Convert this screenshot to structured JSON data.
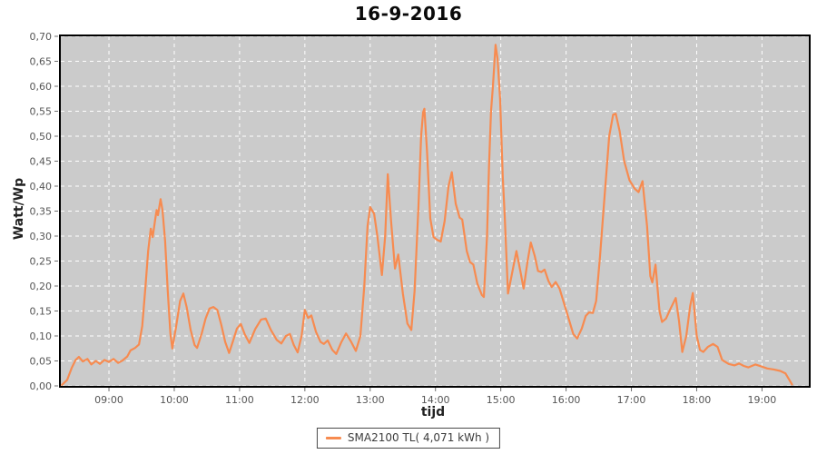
{
  "colors": {
    "line": "#f78b50",
    "plot_bg": "#cbcbcb",
    "grid": "#ffffff",
    "plot_border": "#000000",
    "tick": "#6e6e6e",
    "tick_label": "#555555",
    "title_text": "#0a0a0a",
    "legend_border": "#4a4a4a"
  },
  "chart_data": {
    "type": "line",
    "title": "16-9-2016",
    "xlabel": "tijd",
    "ylabel": "Watt/Wp",
    "grid": true,
    "legend": {
      "position": "bottom",
      "entries": [
        {
          "label": "SMA2100 TL( 4,071 kWh )",
          "color": "#f78b50"
        }
      ]
    },
    "x_ticks": [
      "09:00",
      "10:00",
      "11:00",
      "12:00",
      "13:00",
      "14:00",
      "15:00",
      "16:00",
      "17:00",
      "18:00",
      "19:00"
    ],
    "x_tick_hours": [
      9,
      10,
      11,
      12,
      13,
      14,
      15,
      16,
      17,
      18,
      19
    ],
    "y_ticks": [
      "0,00",
      "0,05",
      "0,10",
      "0,15",
      "0,20",
      "0,25",
      "0,30",
      "0,35",
      "0,40",
      "0,45",
      "0,50",
      "0,55",
      "0,60",
      "0,65",
      "0,70"
    ],
    "y_tick_values": [
      0,
      0.05,
      0.1,
      0.15,
      0.2,
      0.25,
      0.3,
      0.35,
      0.4,
      0.45,
      0.5,
      0.55,
      0.6,
      0.65,
      0.7
    ],
    "ylim": [
      0,
      0.7
    ],
    "xlim_hours": [
      8.235,
      19.745
    ],
    "series": [
      {
        "name": "SMA2100 TL( 4,071 kWh )",
        "points": [
          [
            8.28,
            0.002
          ],
          [
            8.36,
            0.012
          ],
          [
            8.43,
            0.036
          ],
          [
            8.49,
            0.052
          ],
          [
            8.54,
            0.058
          ],
          [
            8.6,
            0.049
          ],
          [
            8.67,
            0.054
          ],
          [
            8.73,
            0.043
          ],
          [
            8.8,
            0.05
          ],
          [
            8.86,
            0.044
          ],
          [
            8.93,
            0.052
          ],
          [
            9.0,
            0.048
          ],
          [
            9.07,
            0.054
          ],
          [
            9.14,
            0.046
          ],
          [
            9.21,
            0.051
          ],
          [
            9.28,
            0.059
          ],
          [
            9.33,
            0.071
          ],
          [
            9.4,
            0.076
          ],
          [
            9.46,
            0.083
          ],
          [
            9.51,
            0.12
          ],
          [
            9.56,
            0.2
          ],
          [
            9.6,
            0.27
          ],
          [
            9.64,
            0.315
          ],
          [
            9.67,
            0.298
          ],
          [
            9.71,
            0.335
          ],
          [
            9.73,
            0.352
          ],
          [
            9.75,
            0.342
          ],
          [
            9.79,
            0.374
          ],
          [
            9.82,
            0.352
          ],
          [
            9.86,
            0.29
          ],
          [
            9.9,
            0.19
          ],
          [
            9.94,
            0.105
          ],
          [
            9.97,
            0.075
          ],
          [
            10.03,
            0.12
          ],
          [
            10.09,
            0.17
          ],
          [
            10.14,
            0.185
          ],
          [
            10.19,
            0.158
          ],
          [
            10.25,
            0.112
          ],
          [
            10.31,
            0.082
          ],
          [
            10.35,
            0.076
          ],
          [
            10.42,
            0.105
          ],
          [
            10.48,
            0.135
          ],
          [
            10.54,
            0.155
          ],
          [
            10.6,
            0.158
          ],
          [
            10.66,
            0.152
          ],
          [
            10.72,
            0.122
          ],
          [
            10.78,
            0.088
          ],
          [
            10.84,
            0.066
          ],
          [
            10.9,
            0.09
          ],
          [
            10.96,
            0.115
          ],
          [
            11.02,
            0.124
          ],
          [
            11.08,
            0.103
          ],
          [
            11.15,
            0.086
          ],
          [
            11.24,
            0.114
          ],
          [
            11.33,
            0.133
          ],
          [
            11.4,
            0.135
          ],
          [
            11.48,
            0.112
          ],
          [
            11.57,
            0.092
          ],
          [
            11.64,
            0.085
          ],
          [
            11.71,
            0.1
          ],
          [
            11.77,
            0.104
          ],
          [
            11.83,
            0.082
          ],
          [
            11.89,
            0.067
          ],
          [
            11.95,
            0.1
          ],
          [
            12.0,
            0.152
          ],
          [
            12.05,
            0.136
          ],
          [
            12.1,
            0.141
          ],
          [
            12.17,
            0.108
          ],
          [
            12.24,
            0.088
          ],
          [
            12.29,
            0.084
          ],
          [
            12.35,
            0.091
          ],
          [
            12.42,
            0.072
          ],
          [
            12.48,
            0.064
          ],
          [
            12.56,
            0.088
          ],
          [
            12.63,
            0.105
          ],
          [
            12.71,
            0.088
          ],
          [
            12.78,
            0.07
          ],
          [
            12.85,
            0.1
          ],
          [
            12.91,
            0.2
          ],
          [
            12.96,
            0.32
          ],
          [
            13.0,
            0.358
          ],
          [
            13.06,
            0.345
          ],
          [
            13.11,
            0.3
          ],
          [
            13.18,
            0.222
          ],
          [
            13.23,
            0.3
          ],
          [
            13.27,
            0.424
          ],
          [
            13.32,
            0.33
          ],
          [
            13.38,
            0.235
          ],
          [
            13.43,
            0.263
          ],
          [
            13.5,
            0.185
          ],
          [
            13.57,
            0.125
          ],
          [
            13.63,
            0.112
          ],
          [
            13.68,
            0.19
          ],
          [
            13.74,
            0.36
          ],
          [
            13.78,
            0.5
          ],
          [
            13.81,
            0.548
          ],
          [
            13.83,
            0.555
          ],
          [
            13.87,
            0.47
          ],
          [
            13.92,
            0.335
          ],
          [
            13.97,
            0.298
          ],
          [
            14.03,
            0.292
          ],
          [
            14.08,
            0.289
          ],
          [
            14.14,
            0.33
          ],
          [
            14.2,
            0.4
          ],
          [
            14.25,
            0.428
          ],
          [
            14.31,
            0.365
          ],
          [
            14.37,
            0.337
          ],
          [
            14.41,
            0.333
          ],
          [
            14.48,
            0.27
          ],
          [
            14.53,
            0.248
          ],
          [
            14.58,
            0.243
          ],
          [
            14.64,
            0.205
          ],
          [
            14.71,
            0.182
          ],
          [
            14.74,
            0.178
          ],
          [
            14.79,
            0.3
          ],
          [
            14.82,
            0.44
          ],
          [
            14.85,
            0.55
          ],
          [
            14.88,
            0.6
          ],
          [
            14.92,
            0.683
          ],
          [
            14.95,
            0.655
          ],
          [
            14.99,
            0.575
          ],
          [
            15.03,
            0.42
          ],
          [
            15.06,
            0.34
          ],
          [
            15.11,
            0.185
          ],
          [
            15.15,
            0.21
          ],
          [
            15.24,
            0.27
          ],
          [
            15.3,
            0.23
          ],
          [
            15.35,
            0.195
          ],
          [
            15.41,
            0.25
          ],
          [
            15.46,
            0.287
          ],
          [
            15.52,
            0.26
          ],
          [
            15.57,
            0.23
          ],
          [
            15.62,
            0.228
          ],
          [
            15.67,
            0.233
          ],
          [
            15.73,
            0.21
          ],
          [
            15.78,
            0.198
          ],
          [
            15.84,
            0.208
          ],
          [
            15.9,
            0.195
          ],
          [
            15.97,
            0.165
          ],
          [
            16.05,
            0.13
          ],
          [
            16.11,
            0.104
          ],
          [
            16.17,
            0.095
          ],
          [
            16.24,
            0.115
          ],
          [
            16.3,
            0.14
          ],
          [
            16.35,
            0.147
          ],
          [
            16.41,
            0.146
          ],
          [
            16.46,
            0.17
          ],
          [
            16.52,
            0.26
          ],
          [
            16.59,
            0.38
          ],
          [
            16.66,
            0.5
          ],
          [
            16.72,
            0.543
          ],
          [
            16.76,
            0.545
          ],
          [
            16.82,
            0.51
          ],
          [
            16.89,
            0.45
          ],
          [
            16.97,
            0.412
          ],
          [
            17.05,
            0.395
          ],
          [
            17.11,
            0.388
          ],
          [
            17.17,
            0.41
          ],
          [
            17.24,
            0.32
          ],
          [
            17.29,
            0.22
          ],
          [
            17.32,
            0.207
          ],
          [
            17.37,
            0.243
          ],
          [
            17.43,
            0.15
          ],
          [
            17.47,
            0.128
          ],
          [
            17.53,
            0.135
          ],
          [
            17.6,
            0.155
          ],
          [
            17.68,
            0.176
          ],
          [
            17.73,
            0.13
          ],
          [
            17.78,
            0.068
          ],
          [
            17.84,
            0.1
          ],
          [
            17.9,
            0.16
          ],
          [
            17.94,
            0.186
          ],
          [
            18.0,
            0.1
          ],
          [
            18.05,
            0.072
          ],
          [
            18.1,
            0.068
          ],
          [
            18.17,
            0.078
          ],
          [
            18.25,
            0.084
          ],
          [
            18.32,
            0.078
          ],
          [
            18.39,
            0.052
          ],
          [
            18.49,
            0.044
          ],
          [
            18.58,
            0.041
          ],
          [
            18.65,
            0.045
          ],
          [
            18.72,
            0.04
          ],
          [
            18.79,
            0.037
          ],
          [
            18.9,
            0.043
          ],
          [
            18.99,
            0.039
          ],
          [
            19.08,
            0.035
          ],
          [
            19.18,
            0.033
          ],
          [
            19.28,
            0.03
          ],
          [
            19.36,
            0.025
          ],
          [
            19.41,
            0.014
          ],
          [
            19.46,
            0.003
          ]
        ]
      }
    ]
  }
}
